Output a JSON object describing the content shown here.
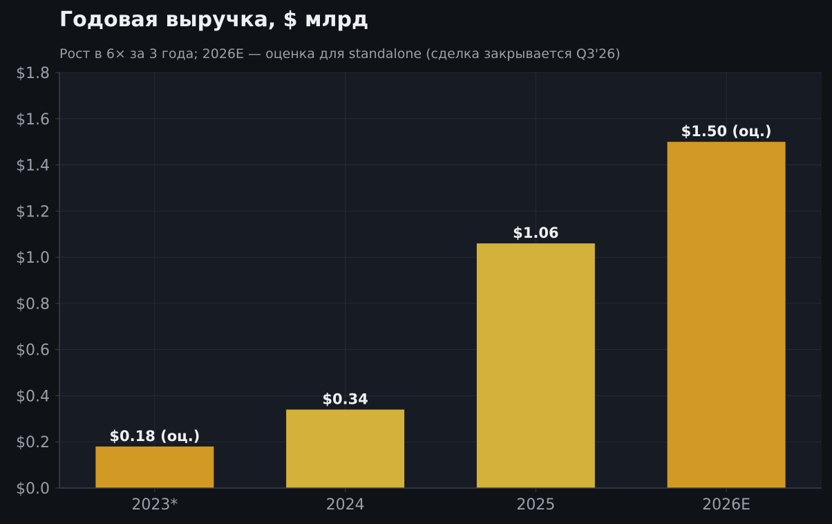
{
  "chart_data": {
    "type": "bar",
    "title": "Годовая выручка, $ млрд",
    "subtitle": "Рост в 6× за 3 года; 2026E — оценка для standalone (сделка закрывается Q3'26)",
    "xlabel": "",
    "ylabel": "",
    "categories": [
      "2023*",
      "2024",
      "2025",
      "2026E"
    ],
    "values": [
      0.18,
      0.34,
      1.06,
      1.5
    ],
    "data_labels": [
      "$0.18 (оц.)",
      "$0.34",
      "$1.06",
      "$1.50 (оц.)"
    ],
    "estimated": [
      true,
      false,
      false,
      true
    ],
    "ylim": [
      0,
      1.8
    ],
    "yticks": [
      0.0,
      0.2,
      0.4,
      0.6,
      0.8,
      1.0,
      1.2,
      1.4,
      1.6,
      1.8
    ],
    "ytick_labels": [
      "$0.0",
      "$0.2",
      "$0.4",
      "$0.6",
      "$0.8",
      "$1.0",
      "$1.2",
      "$1.4",
      "$1.6",
      "$1.8"
    ],
    "grid": true,
    "legend": "none"
  },
  "colors": {
    "page_background": "#0f1317",
    "plot_background": "#171b23",
    "grid": "#262b35",
    "axis": "#3a404b",
    "title": "#eef0f3",
    "subtitle": "#9aa0a8",
    "tick": "#9aa0a8",
    "data_label": "#eef0f3",
    "bar_actual": "#d4b13a",
    "bar_estimate": "#d29a24"
  }
}
